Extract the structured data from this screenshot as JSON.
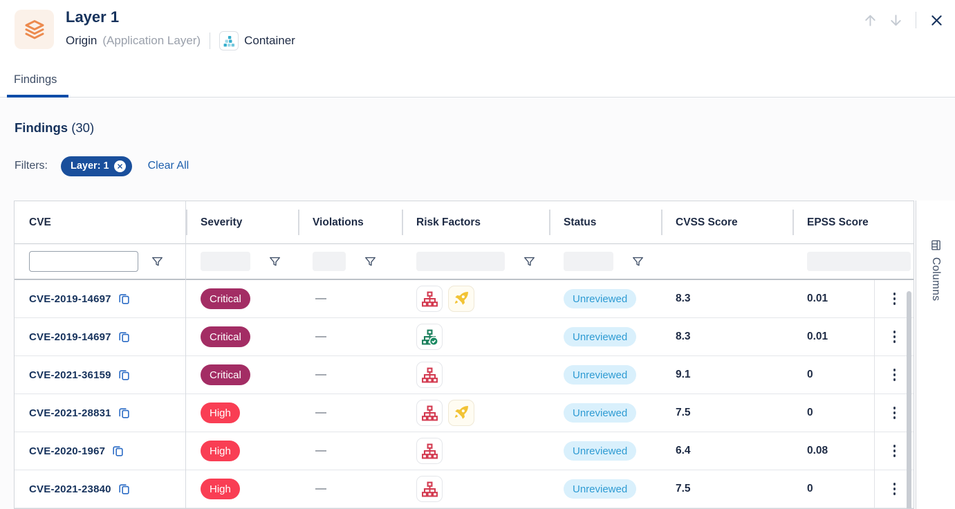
{
  "header": {
    "title": "Layer 1",
    "origin_label": "Origin",
    "origin_qualifier": "(Application Layer)",
    "type_label": "Container"
  },
  "tabs": [
    {
      "label": "Findings"
    }
  ],
  "findings": {
    "title": "Findings",
    "count": "(30)"
  },
  "filters": {
    "label": "Filters:",
    "chips": [
      {
        "label": "Layer: 1"
      }
    ],
    "clear_all": "Clear All"
  },
  "table": {
    "columns": [
      "CVE",
      "Severity",
      "Violations",
      "Risk Factors",
      "Status",
      "CVSS Score",
      "EPSS Score"
    ],
    "filter_placeholders": {
      "cve": ""
    },
    "rows": [
      {
        "cve": "CVE-2019-14697",
        "severity": "Critical",
        "violations": "—",
        "risk_factors": [
          "network",
          "exploit"
        ],
        "status": "Unreviewed",
        "cvss": "8.3",
        "epss": "0.01"
      },
      {
        "cve": "CVE-2019-14697",
        "severity": "Critical",
        "violations": "—",
        "risk_factors": [
          "network-check"
        ],
        "status": "Unreviewed",
        "cvss": "8.3",
        "epss": "0.01"
      },
      {
        "cve": "CVE-2021-36159",
        "severity": "Critical",
        "violations": "—",
        "risk_factors": [
          "network"
        ],
        "status": "Unreviewed",
        "cvss": "9.1",
        "epss": "0"
      },
      {
        "cve": "CVE-2021-28831",
        "severity": "High",
        "violations": "—",
        "risk_factors": [
          "network",
          "exploit"
        ],
        "status": "Unreviewed",
        "cvss": "7.5",
        "epss": "0"
      },
      {
        "cve": "CVE-2020-1967",
        "severity": "High",
        "violations": "—",
        "risk_factors": [
          "network"
        ],
        "status": "Unreviewed",
        "cvss": "6.4",
        "epss": "0.08"
      },
      {
        "cve": "CVE-2021-23840",
        "severity": "High",
        "violations": "—",
        "risk_factors": [
          "network"
        ],
        "status": "Unreviewed",
        "cvss": "7.5",
        "epss": "0"
      }
    ]
  },
  "icon_names": {
    "network": "attack-vector-network-icon",
    "network-check": "attack-vector-verified-icon",
    "exploit": "exploit-exists-icon"
  },
  "columns_button": "Columns",
  "colors": {
    "accent_blue": "#1A4F9C",
    "tab_underline": "#0D4DA8",
    "critical": "#A32D64",
    "high": "#F93E54",
    "status_bg": "#D9F0FC",
    "status_text": "#2E9BD3",
    "layer_icon_orange": "#EC8A4E",
    "container_icon_teal": "#35AECC",
    "risk_red": "#D33A50",
    "risk_green": "#1B7F5C",
    "rocket_yellow": "#F2C335"
  }
}
